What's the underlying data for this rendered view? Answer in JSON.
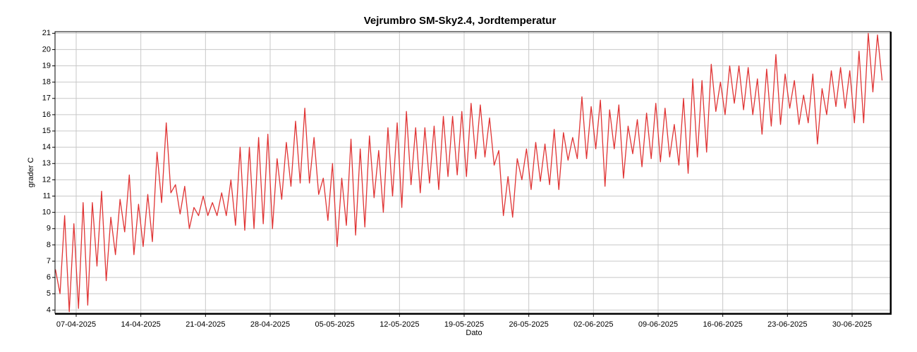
{
  "chart_data": {
    "type": "line",
    "title": "Vejrumbro SM-Sky2.4, Jordtemperatur",
    "xlabel": "Dato",
    "ylabel": "grader C",
    "color": "#e03434",
    "grid": true,
    "x": [
      "2025-04-04 18:00",
      "2025-04-05 06:00",
      "2025-04-05 18:00",
      "2025-04-06 06:00",
      "2025-04-06 18:00",
      "2025-04-07 06:00",
      "2025-04-07 18:00",
      "2025-04-08 06:00",
      "2025-04-08 18:00",
      "2025-04-09 06:00",
      "2025-04-09 18:00",
      "2025-04-10 06:00",
      "2025-04-10 18:00",
      "2025-04-11 06:00",
      "2025-04-11 18:00",
      "2025-04-12 06:00",
      "2025-04-12 18:00",
      "2025-04-13 06:00",
      "2025-04-13 18:00",
      "2025-04-14 06:00",
      "2025-04-14 18:00",
      "2025-04-15 06:00",
      "2025-04-15 18:00",
      "2025-04-16 06:00",
      "2025-04-16 18:00",
      "2025-04-17 06:00",
      "2025-04-17 18:00",
      "2025-04-18 06:00",
      "2025-04-18 18:00",
      "2025-04-19 06:00",
      "2025-04-19 18:00",
      "2025-04-20 06:00",
      "2025-04-20 18:00",
      "2025-04-21 06:00",
      "2025-04-21 18:00",
      "2025-04-22 06:00",
      "2025-04-22 18:00",
      "2025-04-23 06:00",
      "2025-04-23 18:00",
      "2025-04-24 06:00",
      "2025-04-24 18:00",
      "2025-04-25 06:00",
      "2025-04-25 18:00",
      "2025-04-26 06:00",
      "2025-04-26 18:00",
      "2025-04-27 06:00",
      "2025-04-27 18:00",
      "2025-04-28 06:00",
      "2025-04-28 18:00",
      "2025-04-29 06:00",
      "2025-04-29 18:00",
      "2025-04-30 06:00",
      "2025-04-30 18:00",
      "2025-05-01 06:00",
      "2025-05-01 18:00",
      "2025-05-02 06:00",
      "2025-05-02 18:00",
      "2025-05-03 06:00",
      "2025-05-03 18:00",
      "2025-05-04 06:00",
      "2025-05-04 18:00",
      "2025-05-05 06:00",
      "2025-05-05 18:00",
      "2025-05-06 06:00",
      "2025-05-06 18:00",
      "2025-05-07 06:00",
      "2025-05-07 18:00",
      "2025-05-08 06:00",
      "2025-05-08 18:00",
      "2025-05-09 06:00",
      "2025-05-09 18:00",
      "2025-05-10 06:00",
      "2025-05-10 18:00",
      "2025-05-11 06:00",
      "2025-05-11 18:00",
      "2025-05-12 06:00",
      "2025-05-12 18:00",
      "2025-05-13 06:00",
      "2025-05-13 18:00",
      "2025-05-14 06:00",
      "2025-05-14 18:00",
      "2025-05-15 06:00",
      "2025-05-15 18:00",
      "2025-05-16 06:00",
      "2025-05-16 18:00",
      "2025-05-17 06:00",
      "2025-05-17 18:00",
      "2025-05-18 06:00",
      "2025-05-18 18:00",
      "2025-05-19 06:00",
      "2025-05-19 18:00",
      "2025-05-20 06:00",
      "2025-05-20 18:00",
      "2025-05-21 06:00",
      "2025-05-21 18:00",
      "2025-05-22 06:00",
      "2025-05-22 18:00",
      "2025-05-23 06:00",
      "2025-05-23 18:00",
      "2025-05-24 06:00",
      "2025-05-24 18:00",
      "2025-05-25 06:00",
      "2025-05-25 18:00",
      "2025-05-26 06:00",
      "2025-05-26 18:00",
      "2025-05-27 06:00",
      "2025-05-27 18:00",
      "2025-05-28 06:00",
      "2025-05-28 18:00",
      "2025-05-29 06:00",
      "2025-05-29 18:00",
      "2025-05-30 06:00",
      "2025-05-30 18:00",
      "2025-05-31 06:00",
      "2025-05-31 18:00",
      "2025-06-01 06:00",
      "2025-06-01 18:00",
      "2025-06-02 06:00",
      "2025-06-02 18:00",
      "2025-06-03 06:00",
      "2025-06-03 18:00",
      "2025-06-04 06:00",
      "2025-06-04 18:00",
      "2025-06-05 06:00",
      "2025-06-05 18:00",
      "2025-06-06 06:00",
      "2025-06-06 18:00",
      "2025-06-07 06:00",
      "2025-06-07 18:00",
      "2025-06-08 06:00",
      "2025-06-08 18:00",
      "2025-06-09 06:00",
      "2025-06-09 18:00",
      "2025-06-10 06:00",
      "2025-06-10 18:00",
      "2025-06-11 06:00",
      "2025-06-11 18:00",
      "2025-06-12 06:00",
      "2025-06-12 18:00",
      "2025-06-13 06:00",
      "2025-06-13 18:00",
      "2025-06-14 06:00",
      "2025-06-14 18:00",
      "2025-06-15 06:00",
      "2025-06-15 18:00",
      "2025-06-16 06:00",
      "2025-06-16 18:00",
      "2025-06-17 06:00",
      "2025-06-17 18:00",
      "2025-06-18 06:00",
      "2025-06-18 18:00",
      "2025-06-19 06:00",
      "2025-06-19 18:00",
      "2025-06-20 06:00",
      "2025-06-20 18:00",
      "2025-06-21 06:00",
      "2025-06-21 18:00",
      "2025-06-22 06:00",
      "2025-06-22 18:00",
      "2025-06-23 06:00",
      "2025-06-23 18:00",
      "2025-06-24 06:00",
      "2025-06-24 18:00",
      "2025-06-25 06:00",
      "2025-06-25 18:00",
      "2025-06-26 06:00",
      "2025-06-26 18:00",
      "2025-06-27 06:00",
      "2025-06-27 18:00",
      "2025-06-28 06:00",
      "2025-06-28 18:00",
      "2025-06-29 06:00",
      "2025-06-29 18:00",
      "2025-06-30 06:00",
      "2025-06-30 18:00",
      "2025-07-01 06:00",
      "2025-07-01 18:00",
      "2025-07-02 06:00",
      "2025-07-02 18:00",
      "2025-07-03 06:00"
    ],
    "values": [
      6.5,
      5.0,
      9.8,
      3.9,
      9.3,
      4.1,
      10.6,
      4.3,
      10.6,
      6.7,
      11.3,
      5.8,
      9.7,
      7.4,
      10.8,
      8.8,
      12.3,
      7.4,
      10.5,
      7.9,
      11.1,
      8.2,
      13.7,
      10.6,
      15.5,
      11.2,
      11.7,
      9.9,
      11.6,
      9.0,
      10.3,
      9.8,
      11.0,
      9.8,
      10.6,
      9.8,
      11.2,
      9.8,
      12.0,
      9.2,
      14.0,
      8.9,
      14.0,
      9.0,
      14.6,
      9.3,
      14.8,
      9.0,
      13.3,
      10.8,
      14.3,
      11.6,
      15.6,
      11.8,
      16.4,
      11.8,
      14.6,
      11.1,
      12.1,
      9.5,
      13.0,
      7.9,
      12.1,
      9.2,
      14.5,
      8.6,
      13.9,
      9.1,
      14.7,
      10.9,
      13.8,
      10.0,
      15.2,
      11.0,
      15.5,
      10.3,
      16.2,
      11.7,
      15.2,
      11.2,
      15.2,
      11.8,
      15.3,
      11.4,
      15.9,
      12.2,
      15.9,
      12.3,
      16.2,
      12.2,
      16.7,
      13.3,
      16.6,
      13.4,
      15.8,
      12.9,
      13.8,
      9.8,
      12.2,
      9.7,
      13.3,
      12.0,
      13.9,
      11.4,
      14.3,
      11.9,
      14.2,
      11.7,
      15.1,
      11.4,
      14.9,
      13.2,
      14.6,
      13.3,
      17.1,
      13.3,
      16.5,
      13.9,
      16.9,
      11.6,
      16.3,
      13.9,
      16.6,
      12.1,
      15.3,
      13.6,
      15.7,
      12.8,
      16.1,
      13.3,
      16.7,
      13.1,
      16.4,
      13.4,
      15.4,
      12.9,
      17.0,
      12.4,
      18.2,
      13.4,
      18.1,
      13.7,
      19.1,
      16.2,
      18.0,
      16.0,
      19.0,
      16.7,
      19.0,
      16.3,
      18.9,
      16.0,
      18.2,
      14.8,
      18.8,
      15.3,
      19.7,
      15.4,
      18.5,
      16.4,
      18.1,
      15.4,
      17.2,
      15.5,
      18.5,
      14.2,
      17.6,
      16.0,
      18.7,
      16.5,
      18.9,
      16.4,
      18.7,
      15.5,
      19.9,
      15.5,
      21.0,
      17.4,
      20.9,
      18.1
    ],
    "xlim": [
      "2025-04-04 17:00",
      "2025-07-04 03:00"
    ],
    "xticks": [
      {
        "value": "2025-04-07 00:00",
        "label": "07-04-2025"
      },
      {
        "value": "2025-04-14 00:00",
        "label": "14-04-2025"
      },
      {
        "value": "2025-04-21 00:00",
        "label": "21-04-2025"
      },
      {
        "value": "2025-04-28 00:00",
        "label": "28-04-2025"
      },
      {
        "value": "2025-05-05 00:00",
        "label": "05-05-2025"
      },
      {
        "value": "2025-05-12 00:00",
        "label": "12-05-2025"
      },
      {
        "value": "2025-05-19 00:00",
        "label": "19-05-2025"
      },
      {
        "value": "2025-05-26 00:00",
        "label": "26-05-2025"
      },
      {
        "value": "2025-06-02 00:00",
        "label": "02-06-2025"
      },
      {
        "value": "2025-06-09 00:00",
        "label": "09-06-2025"
      },
      {
        "value": "2025-06-16 00:00",
        "label": "16-06-2025"
      },
      {
        "value": "2025-06-23 00:00",
        "label": "23-06-2025"
      },
      {
        "value": "2025-06-30 00:00",
        "label": "30-06-2025"
      }
    ],
    "ylim": [
      3.8,
      21.1
    ],
    "yticks": [
      4,
      5,
      6,
      7,
      8,
      9,
      10,
      11,
      12,
      13,
      14,
      15,
      16,
      17,
      18,
      19,
      20,
      21
    ]
  }
}
